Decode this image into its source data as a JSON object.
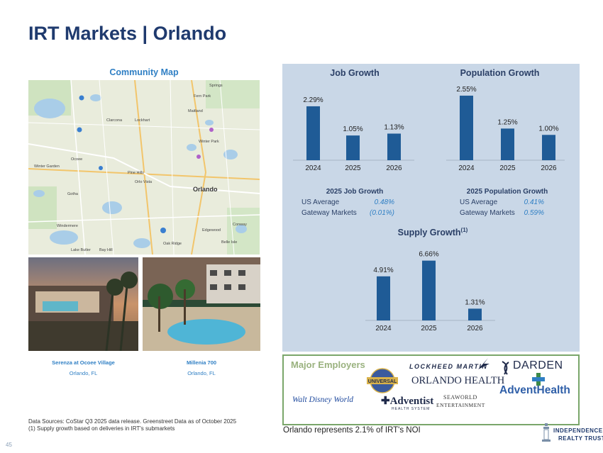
{
  "page": {
    "title": "IRT Markets | Orlando",
    "page_number": "45"
  },
  "community_map": {
    "title": "Community Map",
    "labels": [
      "Fern Park",
      "Maitland",
      "Clarcona",
      "Lockhart",
      "Winter Park",
      "Ocoee",
      "Pine Hills",
      "Orlo Vista",
      "Orlando",
      "Winter Garden",
      "Gotha",
      "Windermere",
      "Edgewood",
      "Oak Ridge",
      "Belle Isle",
      "Conway",
      "Lake Butler",
      "Bay Hill",
      "Springs"
    ]
  },
  "communities": [
    {
      "name": "Serenza at Ocoee Village",
      "location": "Orlando, FL"
    },
    {
      "name": "Millenia 700",
      "location": "Orlando, FL"
    }
  ],
  "charts_meta": {
    "bar_color": "#1f5b96"
  },
  "chart_data": [
    {
      "type": "bar",
      "title": "Job Growth",
      "categories": [
        "2024",
        "2025",
        "2026"
      ],
      "values": [
        2.29,
        1.05,
        1.13
      ],
      "value_labels": [
        "2.29%",
        "1.05%",
        "1.13%"
      ],
      "ylim": [
        0,
        2.8
      ]
    },
    {
      "type": "bar",
      "title": "Population Growth",
      "categories": [
        "2024",
        "2025",
        "2026"
      ],
      "values": [
        2.55,
        1.25,
        1.0
      ],
      "value_labels": [
        "2.55%",
        "1.25%",
        "1.00%"
      ],
      "ylim": [
        0,
        2.8
      ]
    },
    {
      "type": "bar",
      "title": "Supply Growth",
      "title_superscript": "(1)",
      "categories": [
        "2024",
        "2025",
        "2026"
      ],
      "values": [
        4.91,
        6.66,
        1.31
      ],
      "value_labels": [
        "4.91%",
        "6.66%",
        "1.31%"
      ],
      "ylim": [
        0,
        7.5
      ]
    }
  ],
  "job_stats": {
    "title": "2025 Job Growth",
    "rows": [
      {
        "label": "US Average",
        "value": "0.48%"
      },
      {
        "label": "Gateway Markets",
        "value": "(0.01%)"
      }
    ]
  },
  "pop_stats": {
    "title": "2025 Population Growth",
    "rows": [
      {
        "label": "US Average",
        "value": "0.41%"
      },
      {
        "label": "Gateway Markets",
        "value": "0.59%"
      }
    ]
  },
  "employers": {
    "title": "Major Employers",
    "logos": {
      "universal": "UNIVERSAL",
      "lockheed": "LOCKHEED MARTIN",
      "darden": "DARDEN",
      "orlando_health": "ORLANDO HEALTH",
      "advent_health": "AdventHealth",
      "disney": "Walt Disney World",
      "adventist": "Adventist",
      "adventist_sub": "HEALTH SYSTEM",
      "seaworld": "SEAWORLD",
      "seaworld_sub": "ENTERTAINMENT"
    }
  },
  "footer": {
    "sources_line1": "Data Sources: CoStar Q3 2025 data release. Greenstreet Data as of October 2025",
    "sources_line2": "(1)  Supply growth based on deliveries in IRT's submarkets",
    "noi_note": "Orlando represents 2.1% of IRT's NOI",
    "logo_line1": "INDEPENDENCE",
    "logo_line2": "REALTY TRUST"
  }
}
